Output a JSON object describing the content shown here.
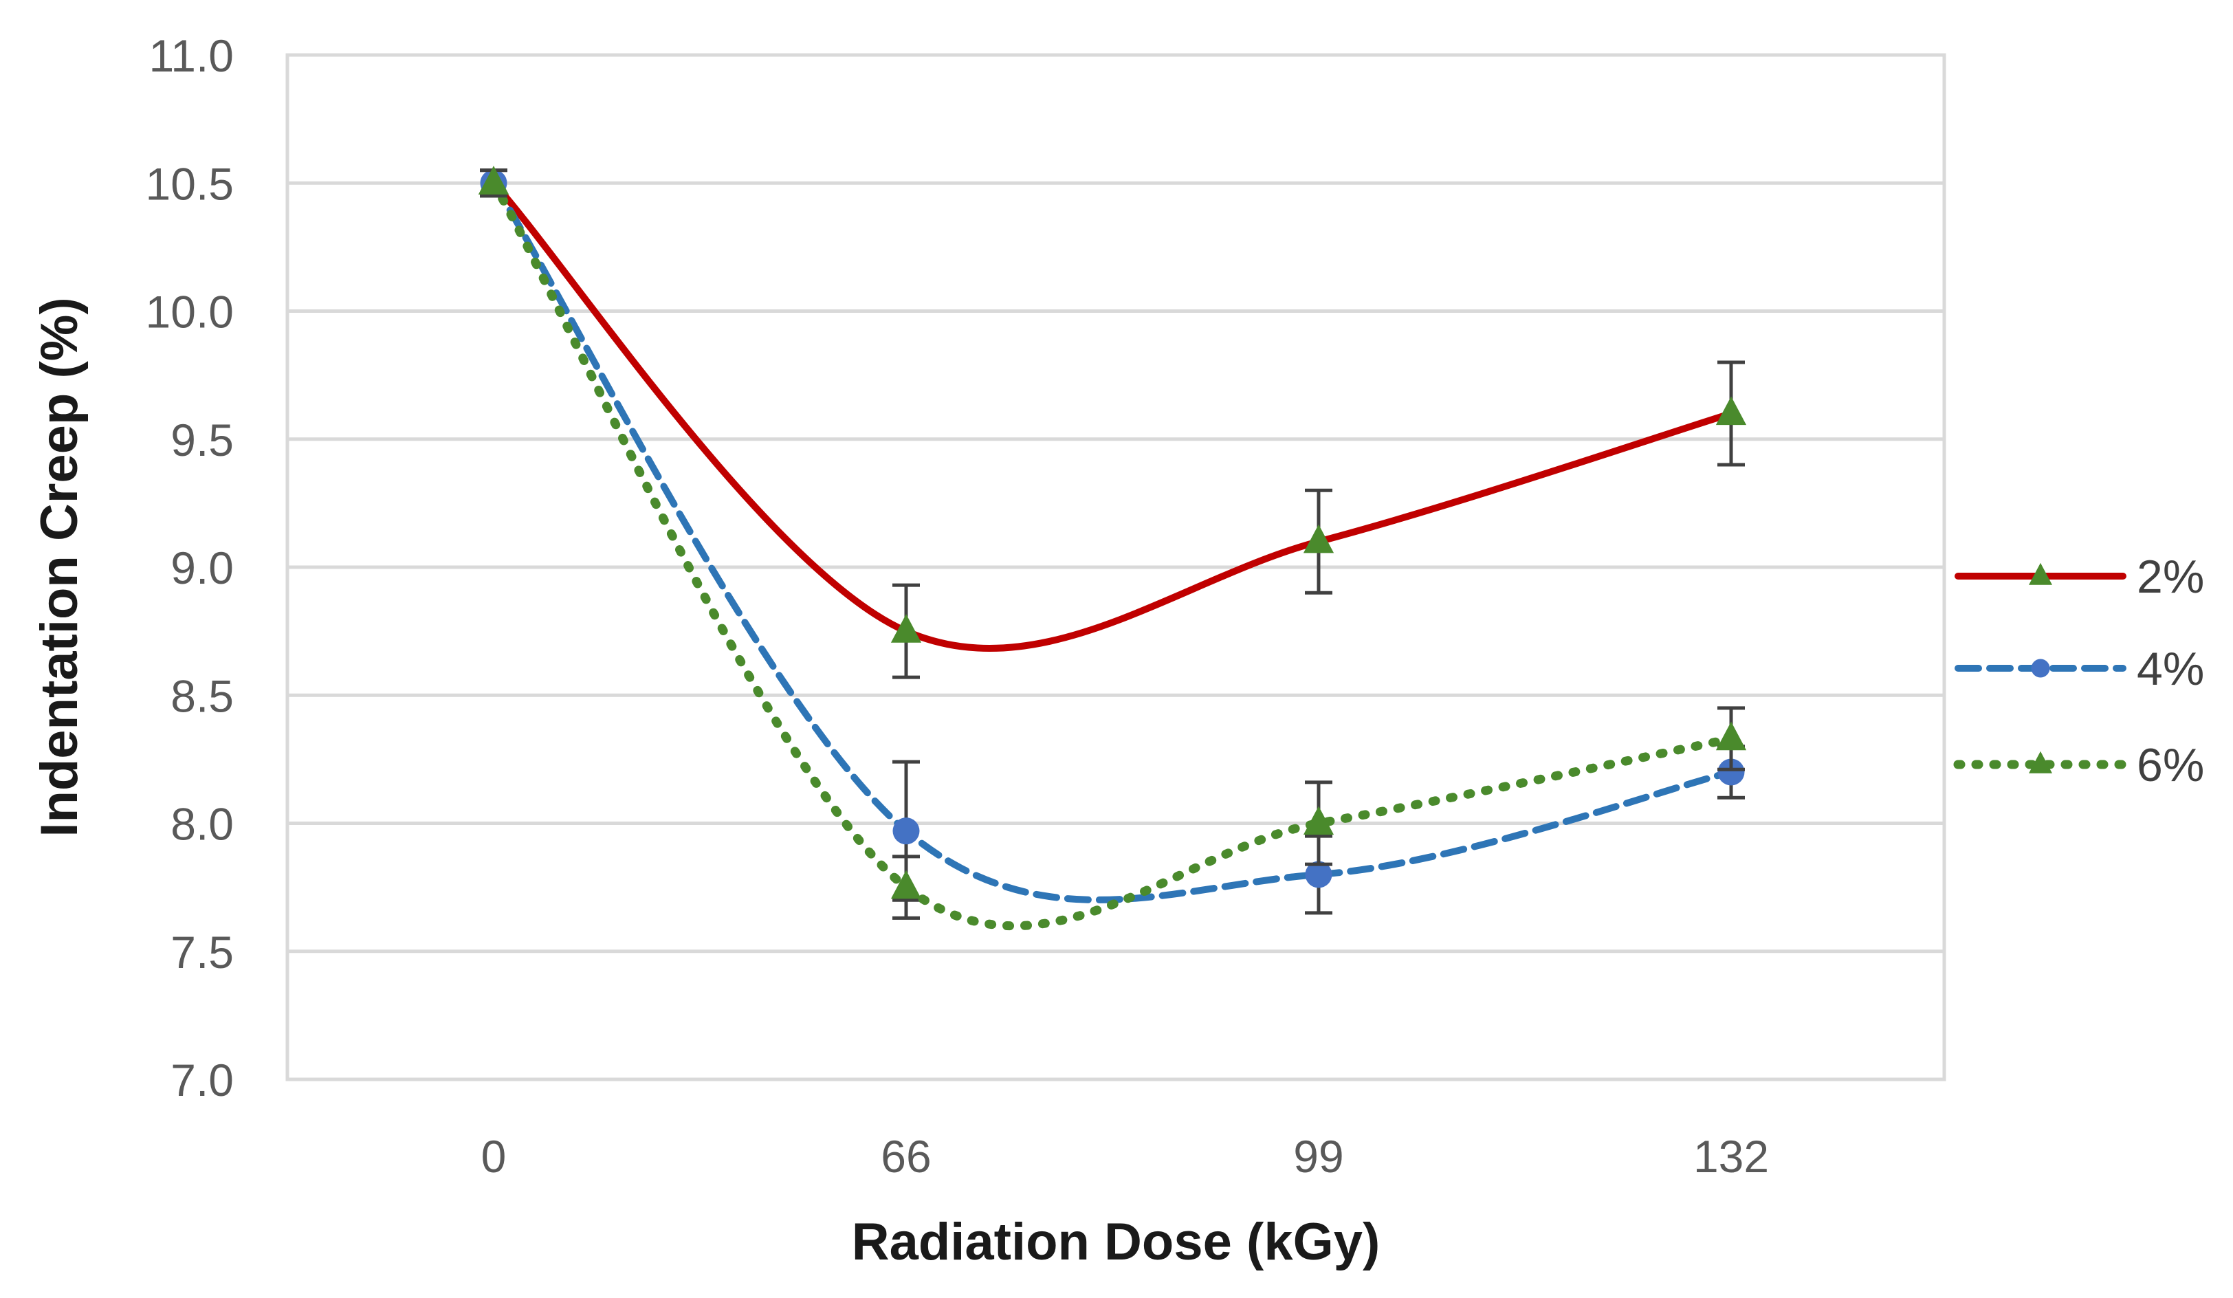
{
  "chart_data": {
    "type": "line",
    "title": "",
    "xlabel": "Radiation Dose (kGy)",
    "ylabel": "Indentation Creep (%)",
    "categories": [
      "0",
      "66",
      "99",
      "132"
    ],
    "ylim": [
      7.0,
      11.0
    ],
    "yticks": [
      "11.0",
      "10.5",
      "10.0",
      "9.5",
      "9.0",
      "8.5",
      "8.0",
      "7.5",
      "7.0"
    ],
    "grid": true,
    "legend_position": "right",
    "series": [
      {
        "name": "2%",
        "values": [
          10.5,
          8.75,
          9.1,
          9.6
        ],
        "errors": [
          0.05,
          0.18,
          0.2,
          0.2
        ],
        "color": "#c00000",
        "marker": "triangle",
        "marker_color": "#4a8a2c",
        "line_style": "solid"
      },
      {
        "name": "4%",
        "values": [
          10.5,
          7.97,
          7.8,
          8.2
        ],
        "errors": [
          0.05,
          0.27,
          0.15,
          0.1
        ],
        "color": "#2e75b6",
        "marker": "circle",
        "marker_color": "#4472c4",
        "line_style": "dashed"
      },
      {
        "name": "6%",
        "values": [
          10.5,
          7.75,
          8.0,
          8.33
        ],
        "errors": [
          0.05,
          0.12,
          0.16,
          0.12
        ],
        "color": "#4a8a2c",
        "marker": "triangle",
        "marker_color": "#4a8a2c",
        "line_style": "dotted"
      }
    ]
  }
}
